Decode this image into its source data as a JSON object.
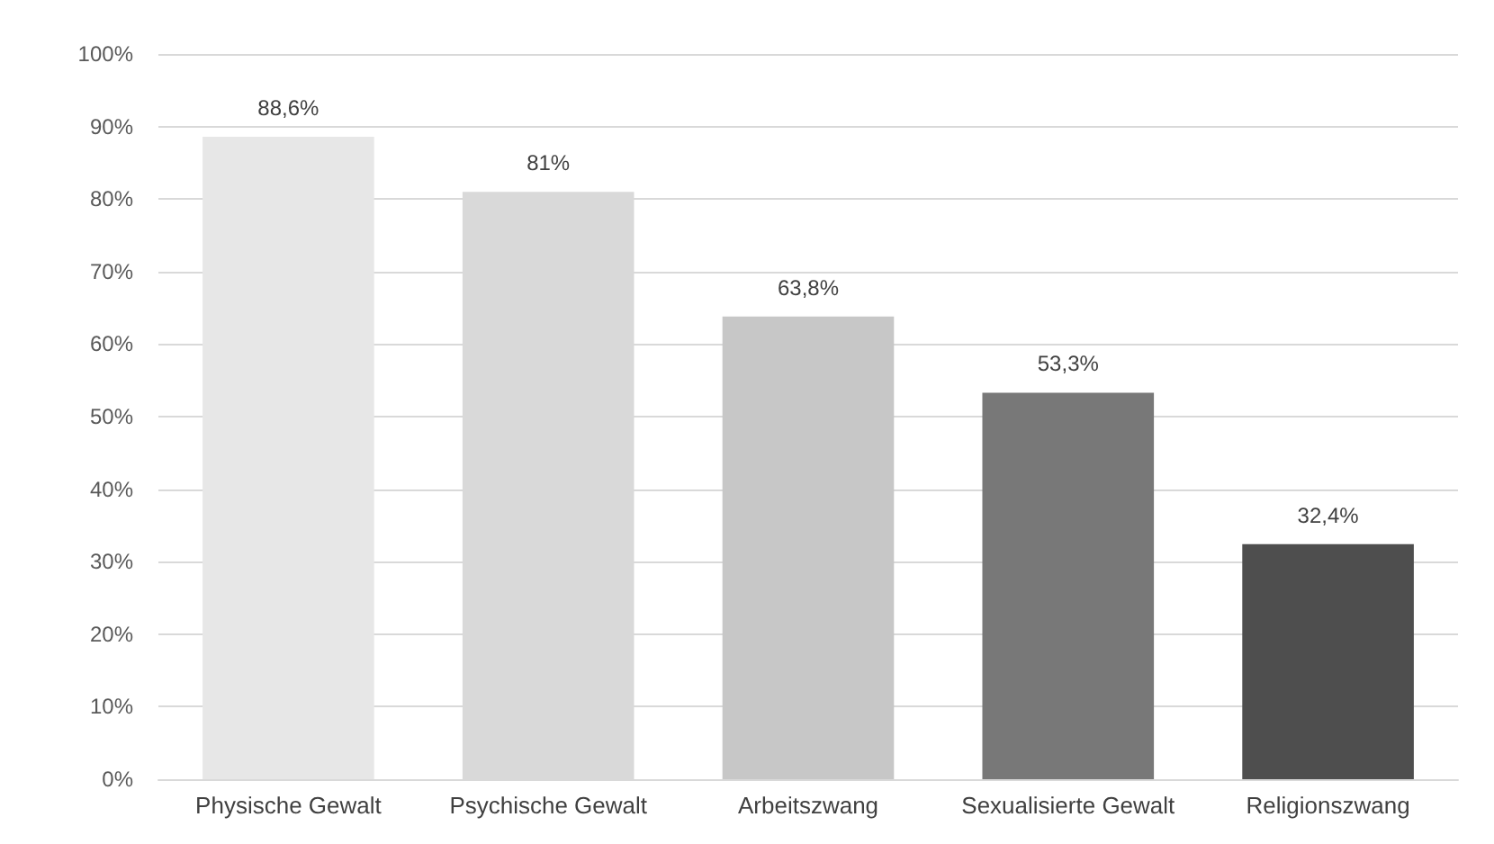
{
  "chart_data": {
    "type": "bar",
    "categories": [
      "Physische Gewalt",
      "Psychische Gewalt",
      "Arbeitszwang",
      "Sexualisierte Gewalt",
      "Religionszwang"
    ],
    "values": [
      88.6,
      81,
      63.8,
      53.3,
      32.4
    ],
    "colors": [
      "#e7e7e7",
      "#d9d9d9",
      "#c7c7c7",
      "#787878",
      "#4e4e4e"
    ],
    "value_labels": [
      "88,6%",
      "81%",
      "63,8%",
      "53,3%",
      "32,4%"
    ],
    "ylim": [
      0,
      100
    ],
    "yticks": [
      {
        "value": 0,
        "label": "0%"
      },
      {
        "value": 10,
        "label": "10%"
      },
      {
        "value": 20,
        "label": "20%"
      },
      {
        "value": 30,
        "label": "30%"
      },
      {
        "value": 40,
        "label": "40%"
      },
      {
        "value": 50,
        "label": "50%"
      },
      {
        "value": 60,
        "label": "60%"
      },
      {
        "value": 70,
        "label": "70%"
      },
      {
        "value": 80,
        "label": "80%"
      },
      {
        "value": 90,
        "label": "90%"
      },
      {
        "value": 100,
        "label": "100%"
      }
    ],
    "grid": "y"
  }
}
